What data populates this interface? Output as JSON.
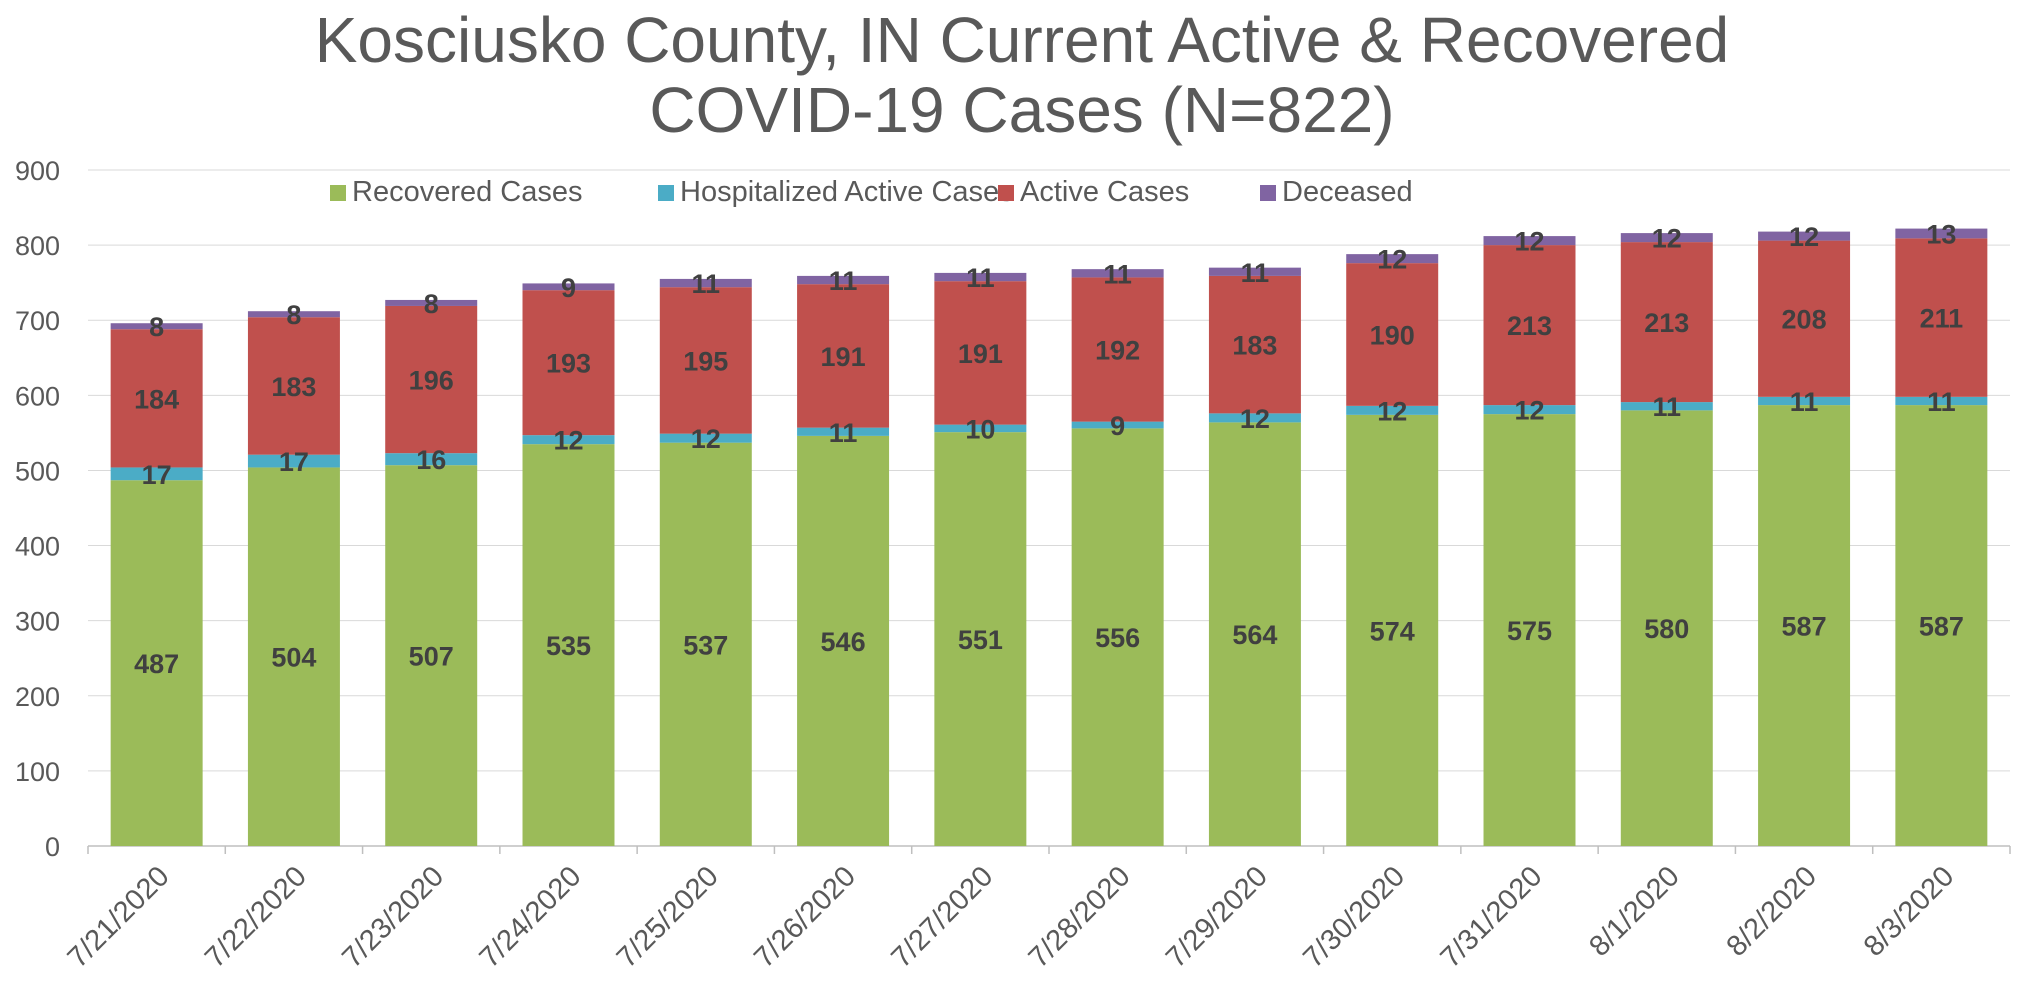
{
  "chart_data": {
    "type": "bar",
    "stacked": true,
    "title_line1": "Kosciusko County, IN Current Active & Recovered",
    "title_line2": "COVID-19 Cases (N=822)",
    "xlabel": "",
    "ylabel": "",
    "ylim": [
      0,
      900
    ],
    "yticks": [
      0,
      100,
      200,
      300,
      400,
      500,
      600,
      700,
      800,
      900
    ],
    "grid": true,
    "legend_position": "top",
    "categories": [
      "7/21/2020",
      "7/22/2020",
      "7/23/2020",
      "7/24/2020",
      "7/25/2020",
      "7/26/2020",
      "7/27/2020",
      "7/28/2020",
      "7/29/2020",
      "7/30/2020",
      "7/31/2020",
      "8/1/2020",
      "8/2/2020",
      "8/3/2020"
    ],
    "series": [
      {
        "name": "Recovered Cases",
        "color": "#9bbb59",
        "values": [
          487,
          504,
          507,
          535,
          537,
          546,
          551,
          556,
          564,
          574,
          575,
          580,
          587,
          587
        ]
      },
      {
        "name": "Hospitalized Active Cases",
        "color": "#4bacc6",
        "values": [
          17,
          17,
          16,
          12,
          12,
          11,
          10,
          9,
          12,
          12,
          12,
          11,
          11,
          11
        ]
      },
      {
        "name": "Active Cases",
        "color": "#c0504d",
        "values": [
          184,
          183,
          196,
          193,
          195,
          191,
          191,
          192,
          183,
          190,
          213,
          213,
          208,
          211
        ]
      },
      {
        "name": "Deceased",
        "color": "#8064a2",
        "values": [
          8,
          8,
          8,
          9,
          11,
          11,
          11,
          11,
          11,
          12,
          12,
          12,
          12,
          13
        ]
      }
    ]
  }
}
